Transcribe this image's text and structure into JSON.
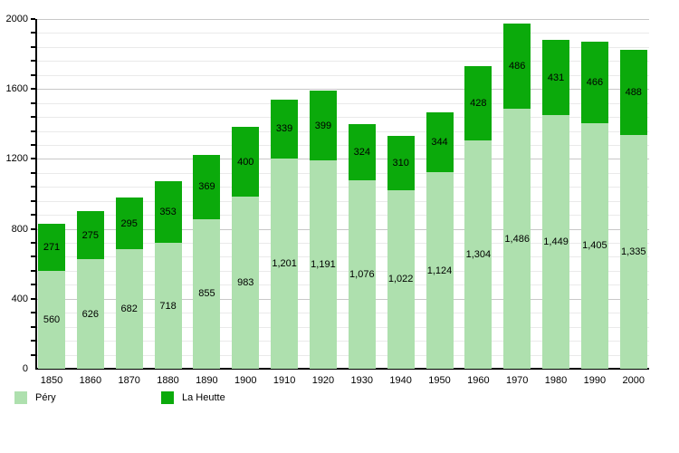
{
  "chart_data": {
    "type": "bar",
    "stacked": true,
    "title": "",
    "xlabel": "",
    "ylabel": "",
    "categories": [
      "1850",
      "1860",
      "1870",
      "1880",
      "1890",
      "1900",
      "1910",
      "1920",
      "1930",
      "1940",
      "1950",
      "1960",
      "1970",
      "1980",
      "1990",
      "2000"
    ],
    "series": [
      {
        "name": "Péry",
        "color": "#AEE0AE",
        "values": [
          560,
          626,
          682,
          718,
          855,
          983,
          1201,
          1191,
          1076,
          1022,
          1124,
          1304,
          1486,
          1449,
          1405,
          1335
        ]
      },
      {
        "name": "La Heutte",
        "color": "#0BAA0B",
        "values": [
          271,
          275,
          295,
          353,
          369,
          400,
          339,
          399,
          324,
          310,
          344,
          428,
          486,
          431,
          466,
          488
        ]
      }
    ],
    "ylim": [
      0,
      2000
    ],
    "y_major_ticks": [
      0,
      400,
      800,
      1200,
      1600,
      2000
    ],
    "y_minor_step": 80,
    "grid": true,
    "legend_position": "bottom"
  },
  "legend": {
    "items": [
      {
        "label": "Péry",
        "color": "#AEE0AE"
      },
      {
        "label": "La Heutte",
        "color": "#0BAA0B"
      }
    ]
  }
}
